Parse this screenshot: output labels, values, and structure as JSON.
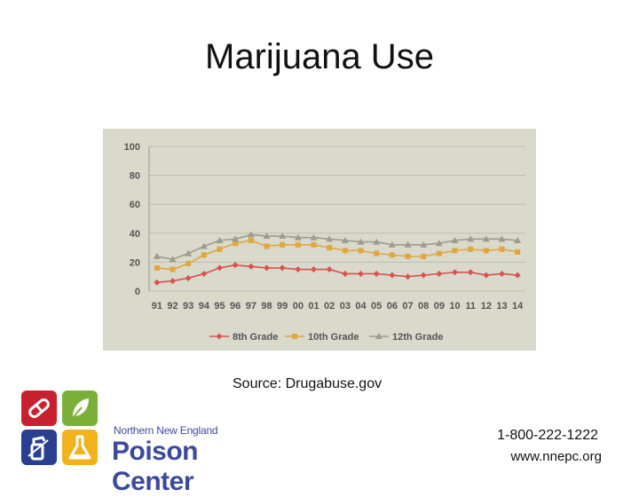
{
  "title": "Marijuana Use",
  "source": "Source:  Drugabuse.gov",
  "contact": {
    "phone": "1-800-222-1222",
    "url": "www.nnepc.org"
  },
  "logo": {
    "line1": "Northern New England",
    "line2": "Poison Center"
  },
  "chart_data": {
    "type": "line",
    "title": "",
    "xlabel": "",
    "ylabel": "",
    "ylim": [
      0,
      100
    ],
    "yticks": [
      0,
      20,
      40,
      60,
      80,
      100
    ],
    "grid": true,
    "legend_position": "bottom",
    "background": "#d9d9cc",
    "categories": [
      "91",
      "92",
      "93",
      "94",
      "95",
      "96",
      "97",
      "98",
      "99",
      "00",
      "01",
      "02",
      "03",
      "04",
      "05",
      "06",
      "07",
      "08",
      "09",
      "10",
      "11",
      "12",
      "13",
      "14"
    ],
    "series": [
      {
        "name": "8th Grade",
        "color": "#d9534f",
        "marker": "diamond",
        "values": [
          6,
          7,
          9,
          12,
          16,
          18,
          17,
          16,
          16,
          15,
          15,
          15,
          12,
          12,
          12,
          11,
          10,
          11,
          12,
          13,
          13,
          11,
          12,
          11
        ]
      },
      {
        "name": "10th Grade",
        "color": "#e0a640",
        "marker": "square",
        "values": [
          16,
          15,
          19,
          25,
          29,
          33,
          35,
          31,
          32,
          32,
          32,
          30,
          28,
          28,
          26,
          25,
          24,
          24,
          26,
          28,
          29,
          28,
          29,
          27
        ]
      },
      {
        "name": "12th Grade",
        "color": "#9c9c8f",
        "marker": "triangle",
        "values": [
          24,
          22,
          26,
          31,
          35,
          36,
          39,
          38,
          38,
          37,
          37,
          36,
          35,
          34,
          34,
          32,
          32,
          32,
          33,
          35,
          36,
          36,
          36,
          35
        ]
      }
    ]
  }
}
